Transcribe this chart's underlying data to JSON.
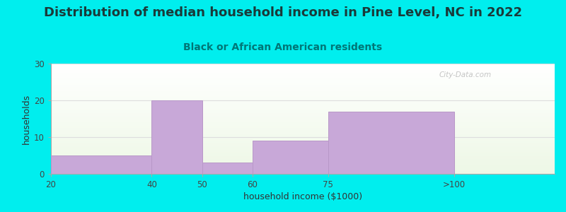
{
  "title": "Distribution of median household income in Pine Level, NC in 2022",
  "subtitle": "Black or African American residents",
  "xlabel": "household income ($1000)",
  "ylabel": "households",
  "x_tick_labels": [
    "20",
    "40",
    "50",
    "60",
    "75",
    ">100"
  ],
  "x_tick_positions": [
    0,
    2,
    3,
    4,
    5.5,
    8
  ],
  "bar_lefts": [
    0,
    2,
    3,
    4,
    5.5
  ],
  "bar_widths": [
    2,
    1,
    1,
    1.5,
    2.5
  ],
  "values": [
    5,
    20,
    3,
    9,
    17
  ],
  "bar_color": "#c8a8d8",
  "bar_edge_color": "#b898c8",
  "background_color": "#00EEEE",
  "plot_bg_color": "#f0faf0",
  "yticks": [
    0,
    10,
    20,
    30
  ],
  "ylim": [
    0,
    30
  ],
  "xlim": [
    0,
    10
  ],
  "title_fontsize": 13,
  "subtitle_fontsize": 10,
  "axis_label_fontsize": 9,
  "tick_fontsize": 8.5,
  "title_color": "#1a3a3a",
  "subtitle_color": "#007777",
  "watermark": "City-Data.com"
}
